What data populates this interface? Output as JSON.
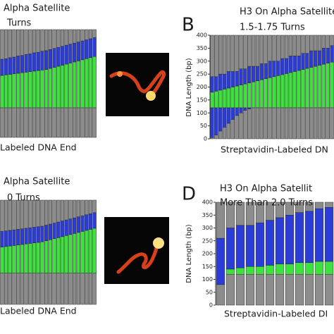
{
  "chart_data": [
    {
      "type": "bar",
      "stacked": true,
      "title": "Alpha Satellite",
      "subtitle": "Turns",
      "xlabel": "Labeled DNA End",
      "ylim": [
        0,
        400
      ],
      "series": [
        {
          "color": "#8c8c8c",
          "values": [
            110,
            110,
            110,
            110,
            110,
            110,
            110,
            110,
            110,
            110,
            110,
            110,
            110,
            110,
            110,
            110,
            110,
            110,
            110,
            110,
            110,
            110,
            110,
            110
          ]
        },
        {
          "color": "#3ee23e",
          "values": [
            120,
            122,
            124,
            126,
            128,
            130,
            132,
            134,
            136,
            138,
            140,
            142,
            146,
            150,
            154,
            158,
            162,
            166,
            170,
            174,
            178,
            182,
            186,
            190
          ]
        },
        {
          "color": "#2b3dd6",
          "values": [
            60,
            60,
            62,
            62,
            64,
            64,
            66,
            66,
            68,
            68,
            70,
            70,
            70,
            70,
            70,
            70,
            70,
            70,
            70,
            70,
            70,
            70,
            70,
            70
          ]
        },
        {
          "color": "#8c8c8c",
          "values": [
            110,
            108,
            104,
            102,
            98,
            96,
            92,
            90,
            86,
            84,
            80,
            78,
            74,
            70,
            66,
            62,
            58,
            54,
            50,
            46,
            42,
            38,
            34,
            30
          ]
        }
      ]
    },
    {
      "type": "bar",
      "stacked": true,
      "panel_label": "B",
      "title": "H3 On Alpha Satellite",
      "subtitle": "1.5-1.75 Turns",
      "xlabel": "Streptavidin-Labeled DN",
      "ylabel": "DNA Length (bp)",
      "ylim": [
        0,
        400
      ],
      "yticks": [
        0,
        50,
        100,
        150,
        200,
        250,
        300,
        350,
        400
      ],
      "series": [
        {
          "color": "#8c8c8c",
          "values": [
            5,
            15,
            30,
            45,
            60,
            75,
            90,
            100,
            110,
            115,
            120,
            120,
            120,
            120,
            120,
            120,
            120,
            120,
            120,
            120,
            120,
            120,
            120,
            120,
            120,
            120,
            120,
            120,
            120,
            120
          ]
        },
        {
          "color": "#2b3dd6",
          "values": [
            115,
            105,
            90,
            75,
            60,
            45,
            30,
            20,
            10,
            5,
            0,
            0,
            0,
            0,
            0,
            0,
            0,
            0,
            0,
            0,
            0,
            0,
            0,
            0,
            0,
            0,
            0,
            0,
            0,
            0
          ]
        },
        {
          "color": "#3ee23e",
          "values": [
            60,
            64,
            68,
            72,
            76,
            80,
            84,
            88,
            92,
            96,
            100,
            104,
            108,
            112,
            116,
            120,
            124,
            128,
            132,
            136,
            140,
            144,
            148,
            152,
            156,
            160,
            164,
            168,
            172,
            176
          ]
        },
        {
          "color": "#2b3dd6",
          "values": [
            60,
            56,
            62,
            58,
            64,
            60,
            56,
            62,
            58,
            64,
            60,
            56,
            62,
            58,
            64,
            60,
            56,
            62,
            58,
            64,
            60,
            56,
            62,
            58,
            64,
            60,
            56,
            62,
            58,
            64
          ]
        },
        {
          "color": "#8c8c8c",
          "values": [
            160,
            160,
            150,
            150,
            140,
            140,
            140,
            130,
            130,
            120,
            120,
            120,
            110,
            110,
            100,
            100,
            100,
            90,
            90,
            80,
            80,
            80,
            70,
            70,
            60,
            60,
            60,
            50,
            50,
            40
          ]
        }
      ]
    },
    {
      "type": "bar",
      "stacked": true,
      "title": "Alpha Satellite",
      "subtitle": "0 Turns",
      "xlabel": "Labeled DNA End",
      "ylim": [
        0,
        400
      ],
      "series": [
        {
          "color": "#8c8c8c",
          "values": [
            120,
            120,
            120,
            120,
            120,
            120,
            120,
            120,
            120,
            120,
            120,
            120,
            120,
            120,
            120,
            120,
            120,
            120,
            120,
            120,
            120,
            120,
            120,
            120
          ]
        },
        {
          "color": "#3ee23e",
          "values": [
            100,
            102,
            104,
            106,
            108,
            110,
            112,
            114,
            116,
            118,
            120,
            124,
            128,
            132,
            136,
            140,
            144,
            148,
            152,
            156,
            160,
            164,
            168,
            172
          ]
        },
        {
          "color": "#2b3dd6",
          "values": [
            60,
            60,
            60,
            60,
            60,
            60,
            60,
            60,
            60,
            60,
            60,
            60,
            60,
            60,
            60,
            60,
            60,
            60,
            60,
            60,
            60,
            60,
            60,
            60
          ]
        },
        {
          "color": "#8c8c8c",
          "values": [
            120,
            118,
            116,
            114,
            112,
            110,
            108,
            106,
            104,
            102,
            100,
            96,
            92,
            88,
            84,
            80,
            76,
            72,
            68,
            64,
            60,
            56,
            52,
            48
          ]
        }
      ]
    },
    {
      "type": "bar",
      "stacked": true,
      "panel_label": "D",
      "title": "H3 On Alpha Satellit",
      "subtitle": "More Than 2.0 Turns",
      "xlabel": "Streptavidin-Labeled DI",
      "ylabel": "DNA Length (bp)",
      "ylim": [
        0,
        400
      ],
      "yticks": [
        0,
        50,
        100,
        150,
        200,
        250,
        300,
        350,
        400
      ],
      "series": [
        {
          "color": "#8c8c8c",
          "values": [
            80,
            120,
            120,
            120,
            120,
            120,
            120,
            120,
            120,
            120,
            120,
            120
          ]
        },
        {
          "color": "#3ee23e",
          "values": [
            0,
            20,
            25,
            30,
            30,
            35,
            40,
            40,
            45,
            45,
            50,
            50
          ]
        },
        {
          "color": "#2b3dd6",
          "values": [
            180,
            160,
            165,
            160,
            170,
            175,
            180,
            190,
            195,
            200,
            205,
            210
          ]
        },
        {
          "color": "#8c8c8c",
          "values": [
            140,
            100,
            90,
            90,
            80,
            70,
            60,
            50,
            40,
            35,
            25,
            20
          ]
        }
      ]
    }
  ]
}
